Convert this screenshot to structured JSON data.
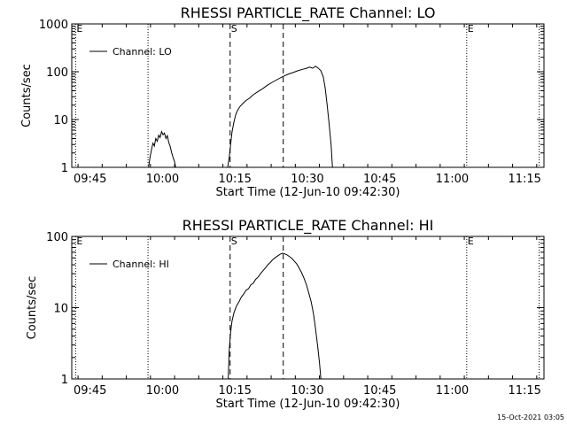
{
  "chart_data": [
    {
      "type": "line",
      "title": "RHESSI PARTICLE_RATE Channel: LO",
      "xlabel": "Start Time (12-Jun-10 09:42:30)",
      "ylabel": "Counts/sec",
      "yscale": "log",
      "ylim": [
        1,
        1000
      ],
      "xlim_minutes": [
        -1.3,
        96.5
      ],
      "x_ticks": [
        {
          "min": 2.5,
          "label": "09:45"
        },
        {
          "min": 17.5,
          "label": "10:00"
        },
        {
          "min": 32.5,
          "label": "10:15"
        },
        {
          "min": 47.5,
          "label": "10:30"
        },
        {
          "min": 62.5,
          "label": "10:45"
        },
        {
          "min": 77.5,
          "label": "11:00"
        },
        {
          "min": 92.5,
          "label": "11:15"
        }
      ],
      "y_ticks": [
        {
          "value": 1,
          "label": "1"
        },
        {
          "value": 10,
          "label": "10"
        },
        {
          "value": 100,
          "label": "100"
        },
        {
          "value": 1000,
          "label": "1000"
        }
      ],
      "legend": {
        "label": "Channel: LO",
        "position": "top-left"
      },
      "markers": [
        {
          "min": -0.5,
          "style": "dotted",
          "label": "E"
        },
        {
          "min": 14.5,
          "style": "dotted",
          "label": ""
        },
        {
          "min": 31.5,
          "style": "dashed",
          "label": "S"
        },
        {
          "min": 42.5,
          "style": "dashed",
          "label": ""
        },
        {
          "min": 80.5,
          "style": "dotted",
          "label": "E"
        },
        {
          "min": 95.5,
          "style": "dotted",
          "label": ""
        }
      ],
      "series": [
        {
          "name": "Channel: LO",
          "segments": [
            [
              [
                14.6,
                1
              ],
              [
                14.9,
                1.6
              ],
              [
                15.2,
                2.3
              ],
              [
                15.5,
                3.2
              ],
              [
                15.8,
                2.8
              ],
              [
                16.1,
                4.0
              ],
              [
                16.4,
                3.5
              ],
              [
                16.7,
                4.7
              ],
              [
                17.0,
                4.2
              ],
              [
                17.3,
                5.6
              ],
              [
                17.6,
                4.8
              ],
              [
                17.9,
                5.2
              ],
              [
                18.2,
                4.0
              ],
              [
                18.5,
                4.6
              ],
              [
                18.8,
                3.3
              ],
              [
                19.1,
                2.7
              ],
              [
                19.4,
                2.0
              ],
              [
                19.7,
                1.6
              ],
              [
                20.0,
                1.3
              ],
              [
                20.2,
                1
              ]
            ],
            [
              [
                31.0,
                1
              ],
              [
                31.3,
                1.6
              ],
              [
                31.6,
                3.0
              ],
              [
                31.9,
                5.5
              ],
              [
                32.3,
                9
              ],
              [
                32.7,
                13
              ],
              [
                33.1,
                16
              ],
              [
                33.6,
                19
              ],
              [
                34.2,
                22
              ],
              [
                34.8,
                25
              ],
              [
                35.5,
                28
              ],
              [
                36.3,
                33
              ],
              [
                37.2,
                38
              ],
              [
                38.2,
                44
              ],
              [
                39.2,
                52
              ],
              [
                40.2,
                60
              ],
              [
                41.2,
                68
              ],
              [
                42.3,
                78
              ],
              [
                43.4,
                88
              ],
              [
                44.5,
                96
              ],
              [
                45.5,
                105
              ],
              [
                46.5,
                112
              ],
              [
                47.3,
                118
              ],
              [
                48.0,
                125
              ],
              [
                48.6,
                118
              ],
              [
                49.2,
                130
              ],
              [
                49.7,
                120
              ],
              [
                50.3,
                105
              ],
              [
                50.8,
                78
              ],
              [
                51.2,
                45
              ],
              [
                51.6,
                20
              ],
              [
                52.0,
                8
              ],
              [
                52.4,
                3
              ],
              [
                52.7,
                1
              ]
            ]
          ]
        }
      ]
    },
    {
      "type": "line",
      "title": "RHESSI PARTICLE_RATE Channel: HI",
      "xlabel": "Start Time (12-Jun-10 09:42:30)",
      "ylabel": "Counts/sec",
      "yscale": "log",
      "ylim": [
        1,
        100
      ],
      "xlim_minutes": [
        -1.3,
        96.5
      ],
      "x_ticks": [
        {
          "min": 2.5,
          "label": "09:45"
        },
        {
          "min": 17.5,
          "label": "10:00"
        },
        {
          "min": 32.5,
          "label": "10:15"
        },
        {
          "min": 47.5,
          "label": "10:30"
        },
        {
          "min": 62.5,
          "label": "10:45"
        },
        {
          "min": 77.5,
          "label": "11:00"
        },
        {
          "min": 92.5,
          "label": "11:15"
        }
      ],
      "y_ticks": [
        {
          "value": 1,
          "label": "1"
        },
        {
          "value": 10,
          "label": "10"
        },
        {
          "value": 100,
          "label": "100"
        }
      ],
      "legend": {
        "label": "Channel: HI",
        "position": "top-left"
      },
      "markers": [
        {
          "min": -0.5,
          "style": "dotted",
          "label": "E"
        },
        {
          "min": 14.5,
          "style": "dotted",
          "label": ""
        },
        {
          "min": 31.5,
          "style": "dashed",
          "label": "S"
        },
        {
          "min": 42.5,
          "style": "dashed",
          "label": ""
        },
        {
          "min": 80.5,
          "style": "dotted",
          "label": "E"
        },
        {
          "min": 95.5,
          "style": "dotted",
          "label": ""
        }
      ],
      "series": [
        {
          "name": "Channel: HI",
          "segments": [
            [
              [
                31.1,
                1
              ],
              [
                31.3,
                2.5
              ],
              [
                31.6,
                4.5
              ],
              [
                31.9,
                6.5
              ],
              [
                32.3,
                8.5
              ],
              [
                32.8,
                10.5
              ],
              [
                33.3,
                12
              ],
              [
                33.8,
                14
              ],
              [
                34.3,
                15.5
              ],
              [
                34.8,
                17.5
              ],
              [
                35.3,
                18.5
              ],
              [
                35.8,
                21
              ],
              [
                36.3,
                22
              ],
              [
                36.8,
                25
              ],
              [
                37.3,
                27
              ],
              [
                37.8,
                30
              ],
              [
                38.3,
                33
              ],
              [
                38.8,
                36
              ],
              [
                39.3,
                40
              ],
              [
                39.8,
                43
              ],
              [
                40.3,
                47
              ],
              [
                40.8,
                50
              ],
              [
                41.3,
                53
              ],
              [
                41.8,
                56
              ],
              [
                42.3,
                58
              ],
              [
                42.8,
                57
              ],
              [
                43.3,
                55
              ],
              [
                43.8,
                52
              ],
              [
                44.3,
                49
              ],
              [
                44.8,
                45
              ],
              [
                45.3,
                41
              ],
              [
                45.8,
                36
              ],
              [
                46.3,
                31
              ],
              [
                46.8,
                26
              ],
              [
                47.3,
                21
              ],
              [
                47.8,
                16
              ],
              [
                48.3,
                12
              ],
              [
                48.8,
                8
              ],
              [
                49.2,
                5
              ],
              [
                49.6,
                3
              ],
              [
                50.0,
                1.7
              ],
              [
                50.3,
                1
              ]
            ]
          ]
        }
      ]
    }
  ],
  "footer": {
    "timestamp": "15-Oct-2021 03:05"
  }
}
